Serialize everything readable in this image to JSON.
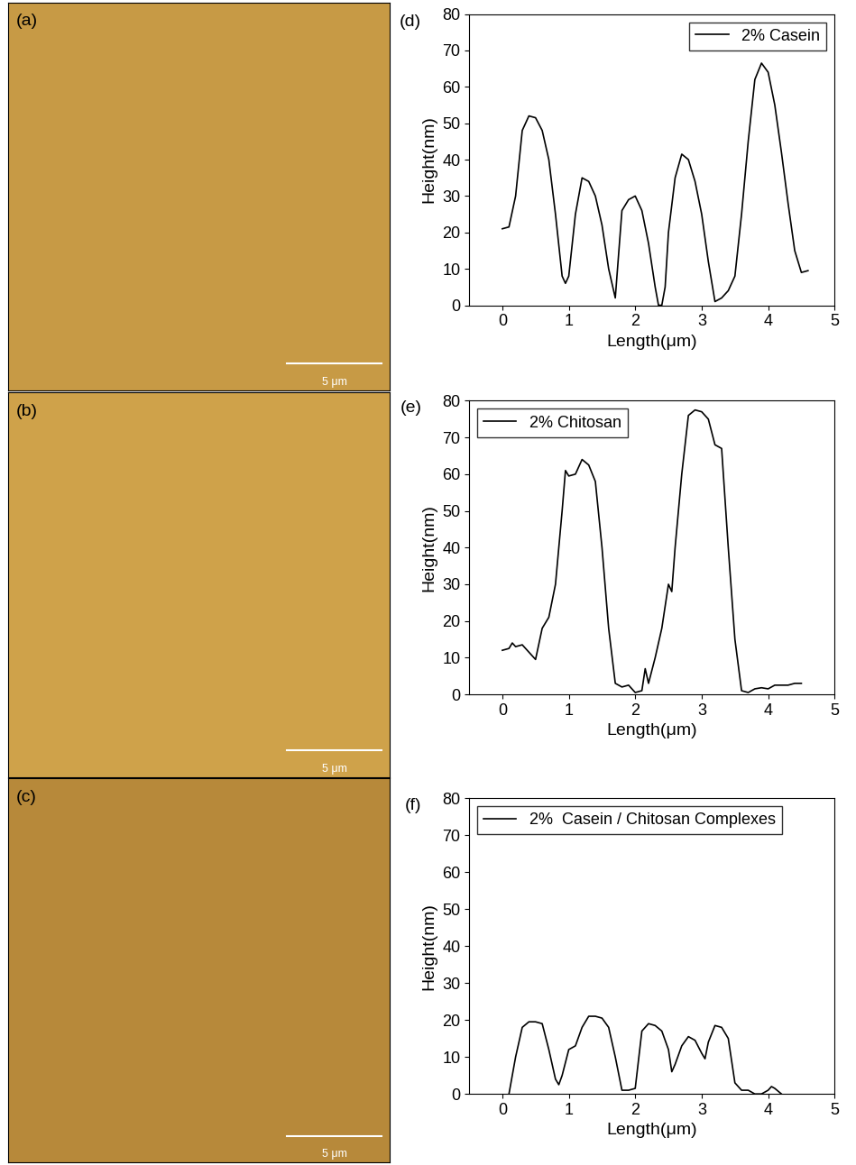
{
  "images": [
    {
      "label": "(a)",
      "scale_bar": "5 μm"
    },
    {
      "label": "(b)",
      "scale_bar": "5 μm"
    },
    {
      "label": "(c)",
      "scale_bar": "5 μm"
    }
  ],
  "chart_data": [
    {
      "type": "line",
      "title": "(d)",
      "x_label": "Length(μm)",
      "y_label": "Height(nm)",
      "xlim": [
        -0.5,
        5
      ],
      "xticks": [
        0,
        1,
        2,
        3,
        4,
        5
      ],
      "ylim": [
        0,
        80
      ],
      "yticks": [
        0,
        10,
        20,
        30,
        40,
        50,
        60,
        70,
        80
      ],
      "legend": "upper right",
      "series": [
        {
          "name": "2% Casein",
          "color": "#000000",
          "x": [
            0,
            0.1,
            0.2,
            0.3,
            0.4,
            0.5,
            0.6,
            0.7,
            0.8,
            0.9,
            0.95,
            1.0,
            1.1,
            1.2,
            1.3,
            1.4,
            1.5,
            1.6,
            1.7,
            1.8,
            1.9,
            2.0,
            2.1,
            2.2,
            2.3,
            2.35,
            2.4,
            2.45,
            2.5,
            2.6,
            2.7,
            2.8,
            2.9,
            3.0,
            3.1,
            3.2,
            3.3,
            3.4,
            3.5,
            3.6,
            3.7,
            3.8,
            3.9,
            4.0,
            4.1,
            4.2,
            4.3,
            4.4,
            4.5,
            4.6
          ],
          "values": [
            21,
            21.5,
            30,
            48,
            52,
            51.5,
            48,
            40,
            25,
            8,
            6,
            8,
            25,
            35,
            34,
            30,
            22,
            10,
            2,
            26,
            29,
            30,
            26,
            17,
            5,
            0,
            0,
            5,
            20,
            35,
            41.5,
            40,
            34,
            25,
            12,
            1,
            2,
            4,
            8,
            25,
            45,
            62,
            66.5,
            64,
            55,
            42,
            28,
            15,
            9,
            9.5
          ]
        }
      ]
    },
    {
      "type": "line",
      "title": "(e)",
      "x_label": "Length(μm)",
      "y_label": "Height(nm)",
      "xlim": [
        -0.5,
        5
      ],
      "xticks": [
        0,
        1,
        2,
        3,
        4,
        5
      ],
      "ylim": [
        0,
        80
      ],
      "yticks": [
        0,
        10,
        20,
        30,
        40,
        50,
        60,
        70,
        80
      ],
      "legend": "upper left",
      "series": [
        {
          "name": "2% Chitosan",
          "color": "#000000",
          "x": [
            0,
            0.1,
            0.15,
            0.2,
            0.3,
            0.4,
            0.5,
            0.6,
            0.7,
            0.8,
            0.9,
            0.95,
            1.0,
            1.1,
            1.2,
            1.3,
            1.4,
            1.5,
            1.6,
            1.7,
            1.8,
            1.9,
            2.0,
            2.1,
            2.15,
            2.2,
            2.3,
            2.4,
            2.5,
            2.55,
            2.6,
            2.7,
            2.8,
            2.9,
            3.0,
            3.1,
            3.2,
            3.3,
            3.4,
            3.5,
            3.6,
            3.7,
            3.8,
            3.9,
            4.0,
            4.1,
            4.2,
            4.3,
            4.4,
            4.5
          ],
          "values": [
            12,
            12.5,
            14,
            13,
            13.5,
            11.5,
            9.5,
            18,
            21,
            30,
            50,
            61,
            59.5,
            60,
            64,
            62.5,
            58,
            40,
            18,
            3,
            2,
            2.5,
            0.5,
            1,
            7,
            3,
            10,
            18,
            30,
            28,
            40,
            60,
            76,
            77.5,
            77,
            75,
            68,
            67,
            40,
            15,
            1,
            0.5,
            1.5,
            1.8,
            1.5,
            2.5,
            2.5,
            2.5,
            3,
            3
          ]
        }
      ]
    },
    {
      "type": "line",
      "title": "(f)",
      "x_label": "Length(μm)",
      "y_label": "Height(nm)",
      "xlim": [
        -0.5,
        5
      ],
      "xticks": [
        0,
        1,
        2,
        3,
        4,
        5
      ],
      "ylim": [
        0,
        80
      ],
      "yticks": [
        0,
        10,
        20,
        30,
        40,
        50,
        60,
        70,
        80
      ],
      "legend": "upper left",
      "series": [
        {
          "name": "2%  Casein / Chitosan Complexes",
          "color": "#000000",
          "x": [
            0.1,
            0.2,
            0.3,
            0.4,
            0.5,
            0.6,
            0.7,
            0.8,
            0.85,
            0.9,
            1.0,
            1.1,
            1.2,
            1.3,
            1.4,
            1.5,
            1.6,
            1.7,
            1.8,
            1.9,
            2.0,
            2.1,
            2.2,
            2.3,
            2.4,
            2.5,
            2.55,
            2.6,
            2.7,
            2.8,
            2.9,
            3.0,
            3.05,
            3.1,
            3.2,
            3.3,
            3.4,
            3.5,
            3.6,
            3.7,
            3.8,
            3.9,
            4.0,
            4.05,
            4.1,
            4.2
          ],
          "values": [
            0,
            10,
            18,
            19.5,
            19.5,
            19,
            12,
            4,
            2.5,
            5,
            12,
            13,
            18,
            21,
            21,
            20.5,
            18,
            10,
            1,
            1,
            1.5,
            17,
            19,
            18.5,
            17,
            12,
            6,
            8,
            13,
            15.5,
            14.5,
            11,
            9.5,
            14,
            18.5,
            18,
            15,
            3,
            1,
            1,
            0,
            0,
            1,
            2,
            1.5,
            0
          ]
        }
      ]
    }
  ]
}
